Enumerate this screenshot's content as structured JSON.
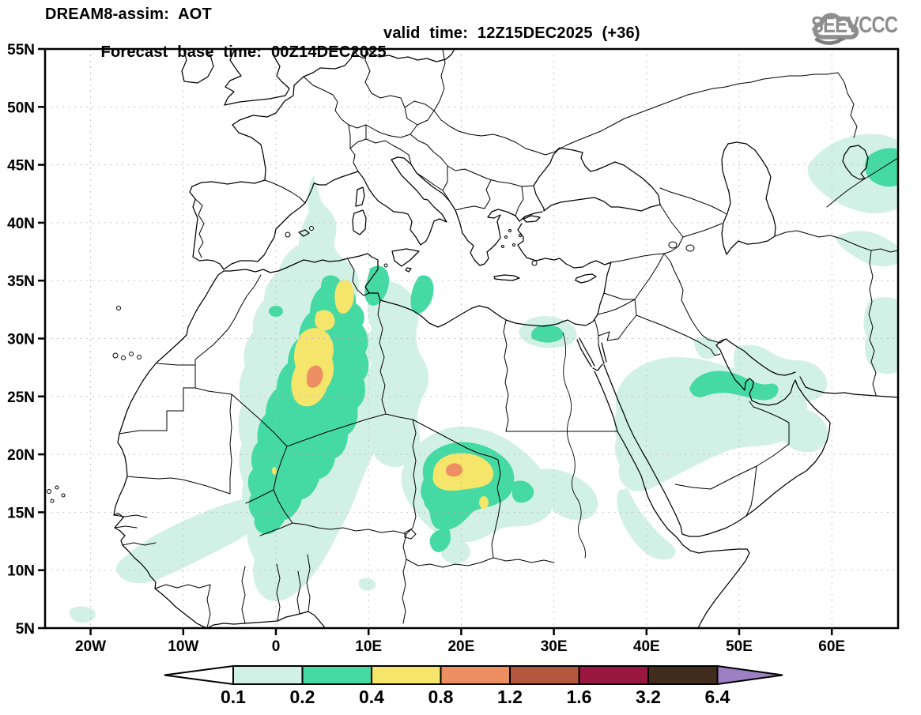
{
  "header": {
    "title": "DREAM8-assim: AOT",
    "subtitle_left": "Forecast base time: 00Z14DEC2025",
    "subtitle_right": "valid time: 12Z15DEC2025 (+36)",
    "logo_text": "SEEVCCC"
  },
  "map": {
    "lat_ticks": [
      {
        "label": "55N",
        "lat": 55
      },
      {
        "label": "50N",
        "lat": 50
      },
      {
        "label": "45N",
        "lat": 45
      },
      {
        "label": "40N",
        "lat": 40
      },
      {
        "label": "35N",
        "lat": 35
      },
      {
        "label": "30N",
        "lat": 30
      },
      {
        "label": "25N",
        "lat": 25
      },
      {
        "label": "20N",
        "lat": 20
      },
      {
        "label": "15N",
        "lat": 15
      },
      {
        "label": "10N",
        "lat": 10
      },
      {
        "label": "5N",
        "lat": 5
      }
    ],
    "lon_ticks": [
      {
        "label": "20W",
        "lon": -20
      },
      {
        "label": "10W",
        "lon": -10
      },
      {
        "label": "0",
        "lon": 0
      },
      {
        "label": "10E",
        "lon": 10
      },
      {
        "label": "20E",
        "lon": 20
      },
      {
        "label": "30E",
        "lon": 30
      },
      {
        "label": "40E",
        "lon": 40
      },
      {
        "label": "50E",
        "lon": 50
      },
      {
        "label": "60E",
        "lon": 60
      }
    ]
  },
  "palette": {
    "pale_cyan": "#d2f1e6",
    "teal": "#45d9a4",
    "yellow": "#f5e56b",
    "orange": "#ee8f63",
    "brick": "#b4573f",
    "maroon": "#9a1742",
    "dark_brown": "#402d1d",
    "purple": "#9d80c4",
    "line": "#000000",
    "grid": "#b5b5b5",
    "logo_gray": "#8e8e8e"
  },
  "colorbar": {
    "levels": [
      "0.1",
      "0.2",
      "0.4",
      "0.8",
      "1.2",
      "1.6",
      "3.2",
      "6.4"
    ],
    "cell_colors": [
      "#d2f1e6",
      "#45d9a4",
      "#f5e56b",
      "#ee8f63",
      "#b4573f",
      "#9a1742",
      "#402d1d"
    ],
    "arrow_left_color": "#ffffff",
    "arrow_right_color": "#9d80c4"
  },
  "chart_data": {
    "type": "map",
    "variable": "AOT (aerosol optical thickness)",
    "model": "DREAM8-assim",
    "base_time": "00Z14DEC2025",
    "valid_time": "12Z15DEC2025 (+36)",
    "lat_range": [
      "5N",
      "55N"
    ],
    "lon_range": [
      "25W",
      "67E"
    ],
    "contour_levels": [
      0.1,
      0.2,
      0.4,
      0.8,
      1.2,
      1.6,
      3.2,
      6.4
    ],
    "features": [
      {
        "region": "Central Algeria / Sahara plume extending to Mali",
        "max_level": "0.8-1.2",
        "center": "27N 4E"
      },
      {
        "region": "NE Algeria / Tunisia border ridge",
        "max_level": "0.4-0.8",
        "center": "34N 7E"
      },
      {
        "region": "Chad / Bodele plume",
        "max_level": "0.8-1.2",
        "center": "18.5N 18E"
      },
      {
        "region": "West Africa coastal band into Atlantic",
        "max_level": "0.1-0.2",
        "center": "12N 15W"
      },
      {
        "region": "NW Egypt spot",
        "max_level": "0.2-0.4",
        "center": "30.5N 28E"
      },
      {
        "region": "Central Saudi Arabia band",
        "max_level": "0.2-0.4",
        "center": "25N 47E"
      },
      {
        "region": "Turan / NE Caspian patch",
        "max_level": "0.2-0.4",
        "center": "44N 65E"
      },
      {
        "region": "Iran / Persian Gulf scattered patches",
        "max_level": "0.1-0.2",
        "center": "27N 55E"
      },
      {
        "region": "S France - E Spain - Balearics plume",
        "max_level": "0.1-0.2",
        "center": "40N 3E"
      }
    ]
  }
}
